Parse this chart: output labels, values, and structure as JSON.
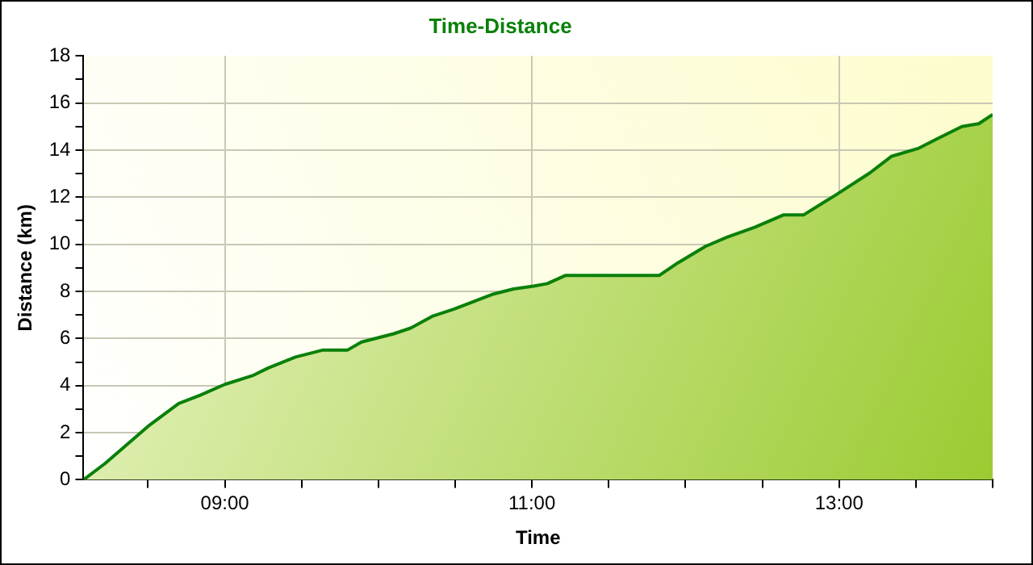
{
  "chart_data": {
    "type": "area",
    "title": "Time-Distance",
    "xlabel": "Time",
    "ylabel": "Distance (km)",
    "x": [
      8.08,
      8.22,
      8.5,
      8.7,
      8.84,
      9.0,
      9.18,
      9.28,
      9.46,
      9.64,
      9.8,
      9.89,
      10.1,
      10.21,
      10.35,
      10.49,
      10.74,
      10.88,
      11.01,
      11.1,
      11.22,
      11.83,
      11.95,
      12.13,
      12.27,
      12.45,
      12.64,
      12.77,
      12.98,
      13.2,
      13.34,
      13.52,
      13.62,
      13.8,
      13.91,
      14.0
    ],
    "series": [
      {
        "color": "#0a800a",
        "values": [
          0,
          0.69,
          2.27,
          3.24,
          3.59,
          4.05,
          4.42,
          4.74,
          5.21,
          5.51,
          5.51,
          5.85,
          6.2,
          6.44,
          6.94,
          7.24,
          7.87,
          8.1,
          8.22,
          8.33,
          8.68,
          8.68,
          9.21,
          9.91,
          10.3,
          10.72,
          11.25,
          11.25,
          12.1,
          13.03,
          13.73,
          14.08,
          14.42,
          15.0,
          15.12,
          15.51
        ]
      }
    ],
    "xlim": [
      8.08,
      14.0
    ],
    "xticks": [
      {
        "value": 8.5,
        "label": null
      },
      {
        "value": 9,
        "label": "09:00"
      },
      {
        "value": 9.5,
        "label": null
      },
      {
        "value": 10,
        "label": null
      },
      {
        "value": 10.5,
        "label": null
      },
      {
        "value": 11,
        "label": "11:00"
      },
      {
        "value": 11.5,
        "label": null
      },
      {
        "value": 12,
        "label": null
      },
      {
        "value": 12.5,
        "label": null
      },
      {
        "value": 13,
        "label": "13:00"
      },
      {
        "value": 13.5,
        "label": null
      },
      {
        "value": 14,
        "label": null
      }
    ],
    "ylim": [
      0,
      18
    ],
    "yticks": [
      0,
      {
        "value": 1,
        "label": null
      },
      2,
      {
        "value": 3,
        "label": null
      },
      4,
      {
        "value": 5,
        "label": null
      },
      6,
      {
        "value": 7,
        "label": null
      },
      8,
      {
        "value": 9,
        "label": null
      },
      10,
      {
        "value": 11,
        "label": null
      },
      12,
      {
        "value": 13,
        "label": null
      },
      14,
      {
        "value": 15,
        "label": null
      },
      16,
      {
        "value": 17,
        "label": null
      },
      18
    ],
    "grid": true,
    "legend": false,
    "marker": "none",
    "line_style": "solid"
  }
}
